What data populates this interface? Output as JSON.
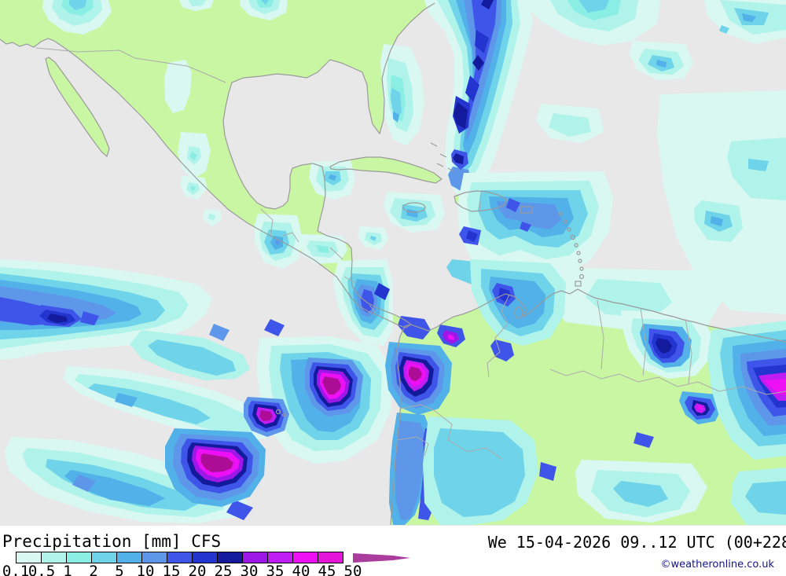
{
  "legend": {
    "title": "Precipitation [mm] CFS",
    "ticks": [
      "0.1",
      "0.5",
      "1",
      "2",
      "5",
      "10",
      "15",
      "20",
      "25",
      "30",
      "35",
      "40",
      "45",
      "50"
    ],
    "cell_colors": [
      "#d9f8f2",
      "#aff3ea",
      "#8beee5",
      "#6fd3e9",
      "#51b1e8",
      "#5e96ea",
      "#3f55ea",
      "#2334cf",
      "#131a9b",
      "#9d17e9",
      "#bf1df2",
      "#ee10f4",
      "#e316da"
    ],
    "arrow_color": "#a93c9c"
  },
  "footer": {
    "datetime": "We 15-04-2026 09..12 UTC (00+228",
    "copyright": "©weatheronline.co.uk"
  },
  "palette": {
    "ocean": "#e9e8e8",
    "land": "#c9f6a2",
    "coast": "#9a9a9a",
    "border": "#ababab",
    "c1": "#d9f8f2",
    "c2": "#aff3ea",
    "c3": "#8beee5",
    "c4": "#6fd3e9",
    "c5": "#51b1e8",
    "c6": "#5e96ea",
    "c7": "#3f55ea",
    "c8": "#2334cf",
    "c9": "#131a9b",
    "c10": "#9d17e9",
    "c11": "#bf1df2",
    "c12": "#ee10f4",
    "ov": "#ad0d96"
  }
}
